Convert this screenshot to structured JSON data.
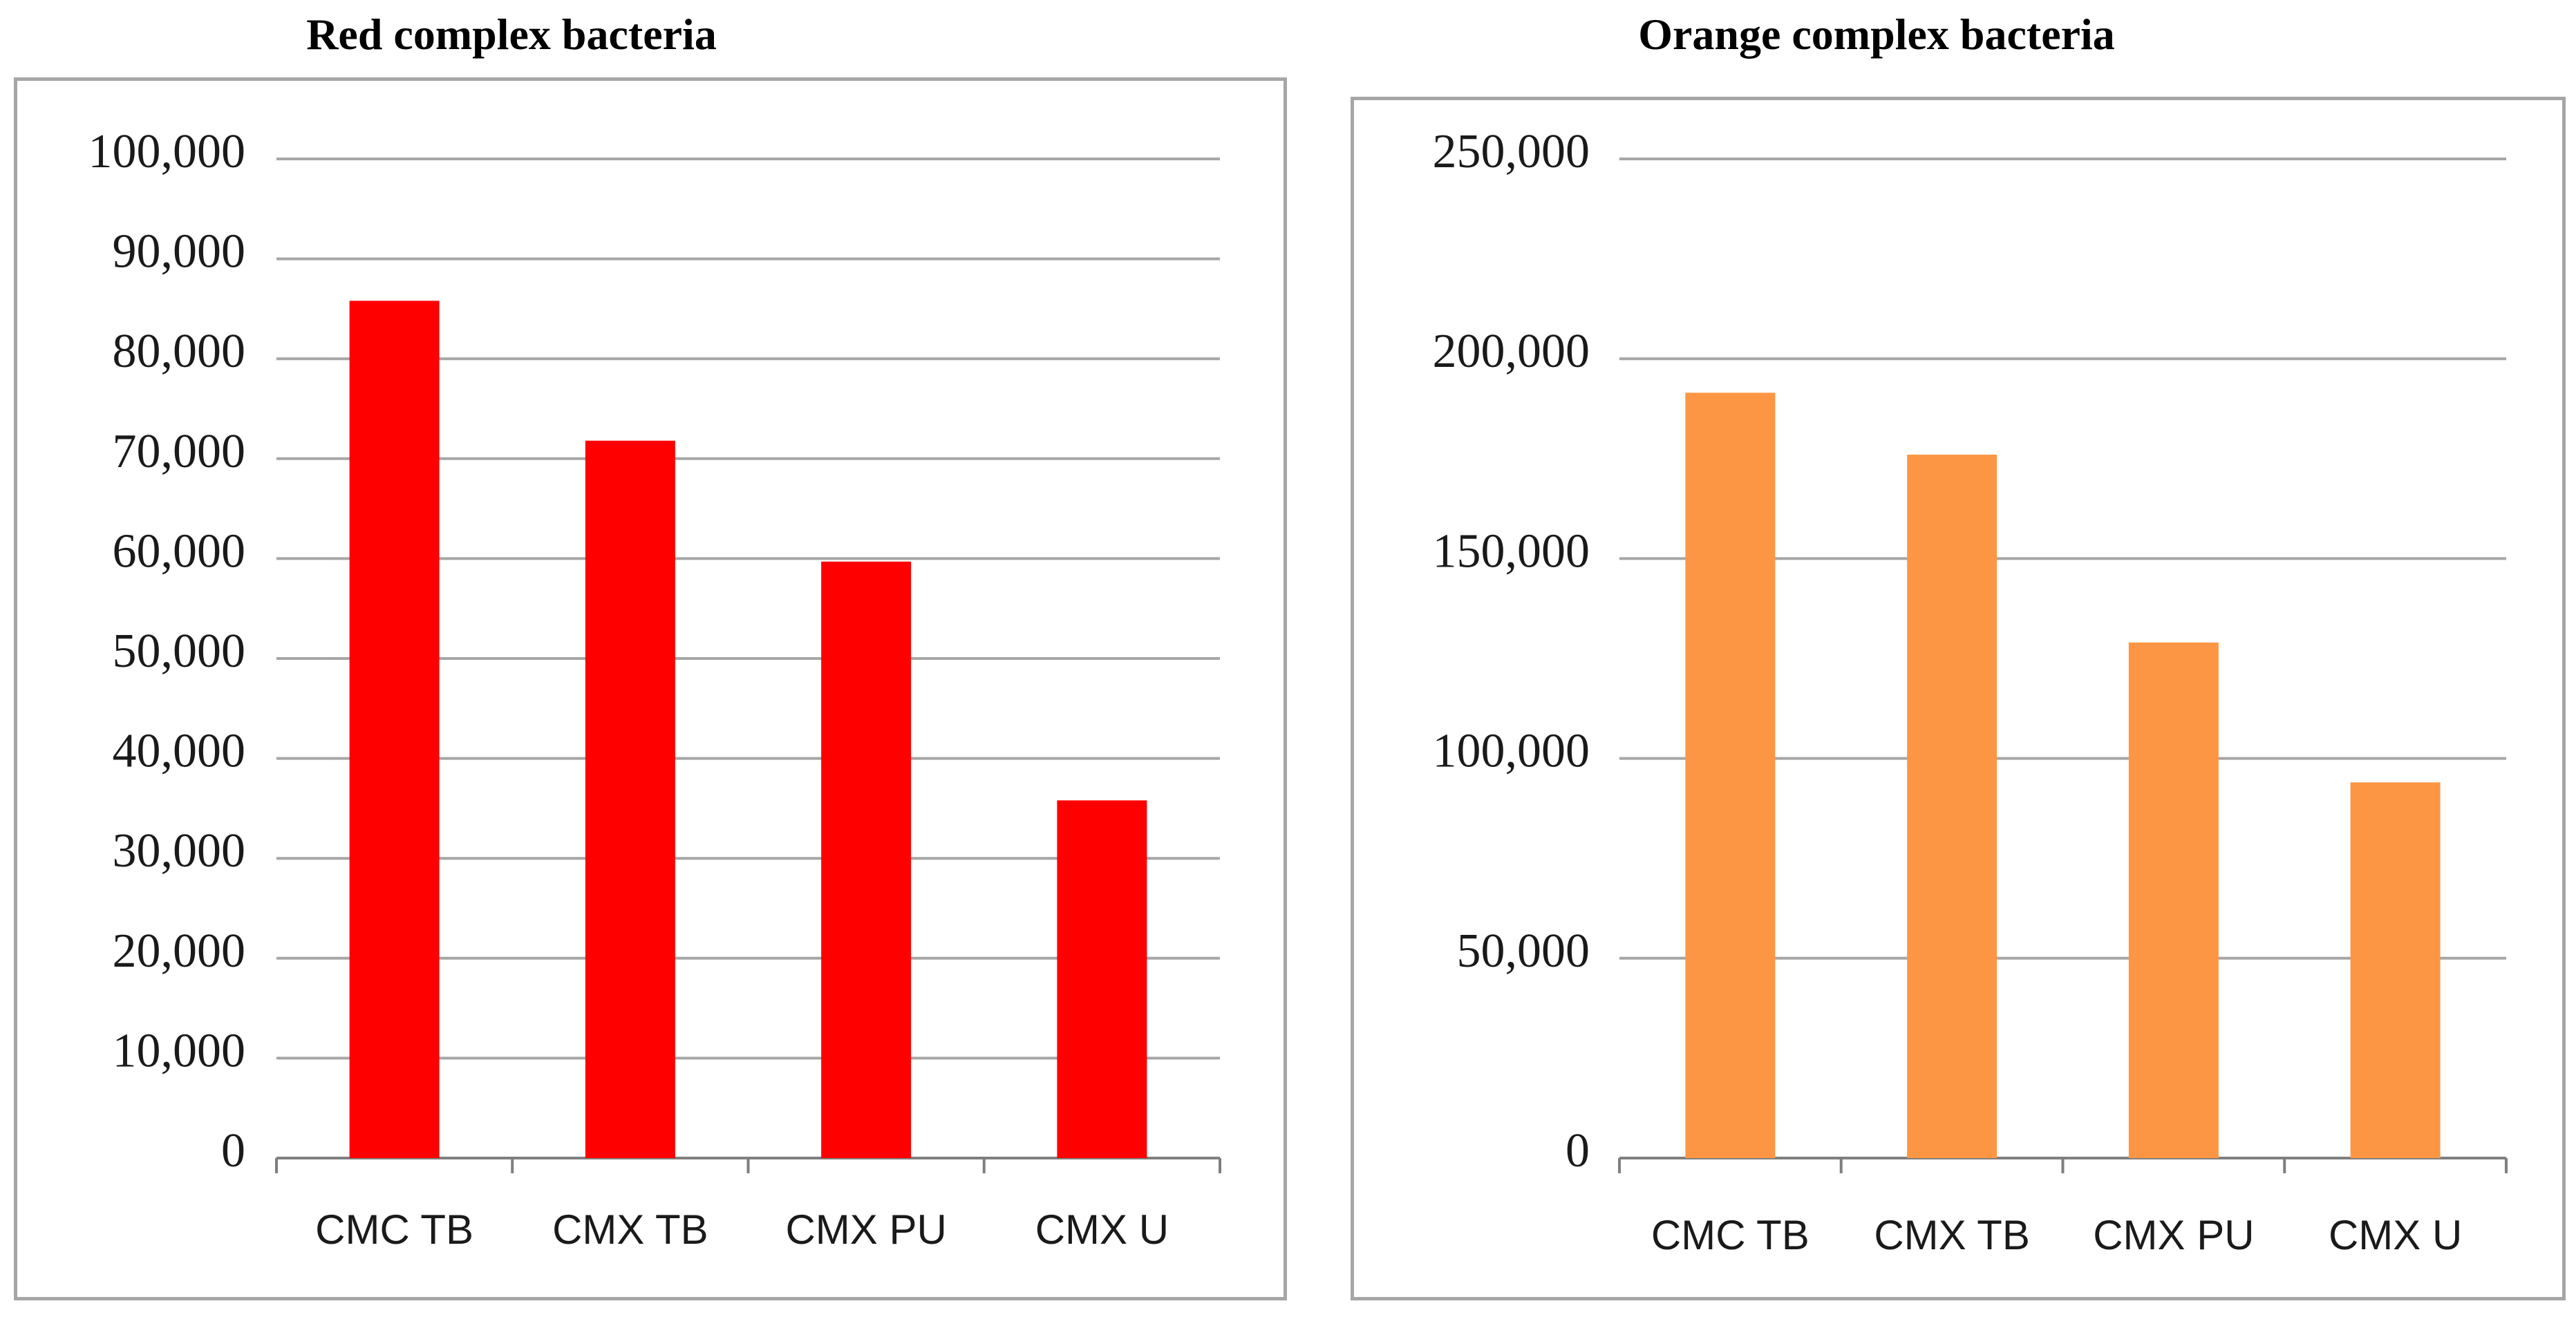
{
  "chart_data": [
    {
      "type": "bar",
      "title": "Red complex bacteria",
      "categories": [
        "CMC TB",
        "CMX TB",
        "CMX PU",
        "CMX U"
      ],
      "values": [
        85800,
        71800,
        59700,
        35800
      ],
      "ylim": [
        0,
        100000
      ],
      "yticks": [
        0,
        10000,
        20000,
        30000,
        40000,
        50000,
        60000,
        70000,
        80000,
        90000,
        100000
      ],
      "ytick_labels": [
        "0",
        "10,000",
        "20,000",
        "30,000",
        "40,000",
        "50,000",
        "60,000",
        "70,000",
        "80,000",
        "90,000",
        "100,000"
      ],
      "xlabel": "",
      "ylabel": "",
      "grid": true,
      "legend": "none",
      "bar_color": "#ff0000"
    },
    {
      "type": "bar",
      "title": "Orange complex bacteria",
      "categories": [
        "CMC TB",
        "CMX TB",
        "CMX PU",
        "CMX U"
      ],
      "values": [
        191500,
        176000,
        129000,
        94000
      ],
      "ylim": [
        0,
        250000
      ],
      "yticks": [
        0,
        50000,
        100000,
        150000,
        200000,
        250000
      ],
      "ytick_labels": [
        "0",
        "50,000",
        "100,000",
        "150,000",
        "200,000",
        "250,000"
      ],
      "xlabel": "",
      "ylabel": "",
      "grid": true,
      "legend": "none",
      "bar_color": "#fd9644"
    }
  ],
  "colors": {
    "gridline": "#a6a6a6",
    "border": "#a6a6a6",
    "axis": "#7f7f7f"
  }
}
